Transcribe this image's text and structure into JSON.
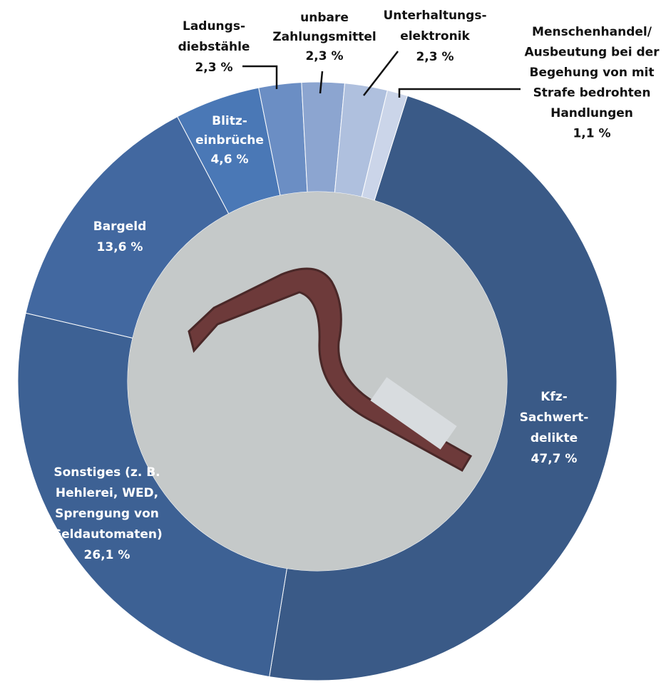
{
  "chart_data": {
    "type": "donut",
    "categories": [
      "Kfz-\nSachwert-\ndelikte",
      "Sonstiges (z. B.\nHehlerei, WED,\nSprengung von\nGeldautomaten)",
      "Bargeld",
      "Blitz-\neinbrüche",
      "Ladungs-\ndiebstähle",
      "unbare\nZahlungsmittel",
      "Unterhaltungs-\nelektronik",
      "Menschenhandel/\nAusbeutung bei der\nBegehung von mit\nStrafe bedrohten\nHandlungen"
    ],
    "values": [
      47.7,
      26.1,
      13.6,
      4.6,
      2.3,
      2.3,
      2.3,
      1.1
    ],
    "value_labels": [
      "47,7 %",
      "26,1 %",
      "13,6 %",
      "4,6 %",
      "2,3 %",
      "2,3 %",
      "2,3 %",
      "1,1 %"
    ],
    "colors": [
      "#3a5a87",
      "#3d6194",
      "#4268a0",
      "#4a78b6",
      "#6b8ec4",
      "#8ca5d0",
      "#afc0de",
      "#cbd5e9"
    ]
  }
}
